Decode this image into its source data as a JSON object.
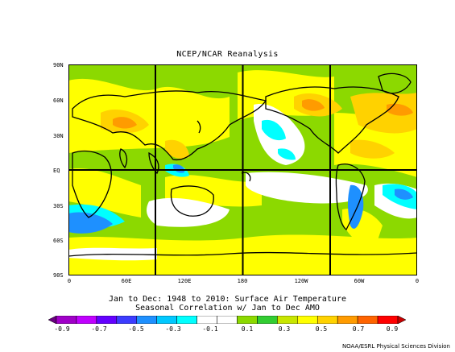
{
  "title": "NCEP/NCAR Reanalysis",
  "lat_labels": [
    "90N",
    "60N",
    "30N",
    "EQ",
    "30S",
    "60S",
    "90S"
  ],
  "lon_labels": [
    "0",
    "60E",
    "120E",
    "180",
    "120W",
    "60W",
    "0"
  ],
  "caption_line1": "Jan to Dec: 1948 to 2010: Surface Air Temperature",
  "caption_line2": "Seasonal Correlation w/ Jan to Dec AMO",
  "colorbar": {
    "labels": [
      "-0.9",
      "-0.7",
      "-0.5",
      "-0.3",
      "-0.1",
      "0.1",
      "0.3",
      "0.5",
      "0.7",
      "0.9"
    ],
    "colors": [
      "#6a0080",
      "#a000c8",
      "#c000ff",
      "#6400ff",
      "#3c3cff",
      "#1e90ff",
      "#00c8ff",
      "#00ffff",
      "#ffffff",
      "#ffffff",
      "#8cd900",
      "#32cd32",
      "#c8e600",
      "#ffff00",
      "#ffd200",
      "#ff9b00",
      "#ff6400",
      "#ff0000",
      "#c80000"
    ]
  },
  "credit": "NOAA/ESRL Physical Sciences Division"
}
